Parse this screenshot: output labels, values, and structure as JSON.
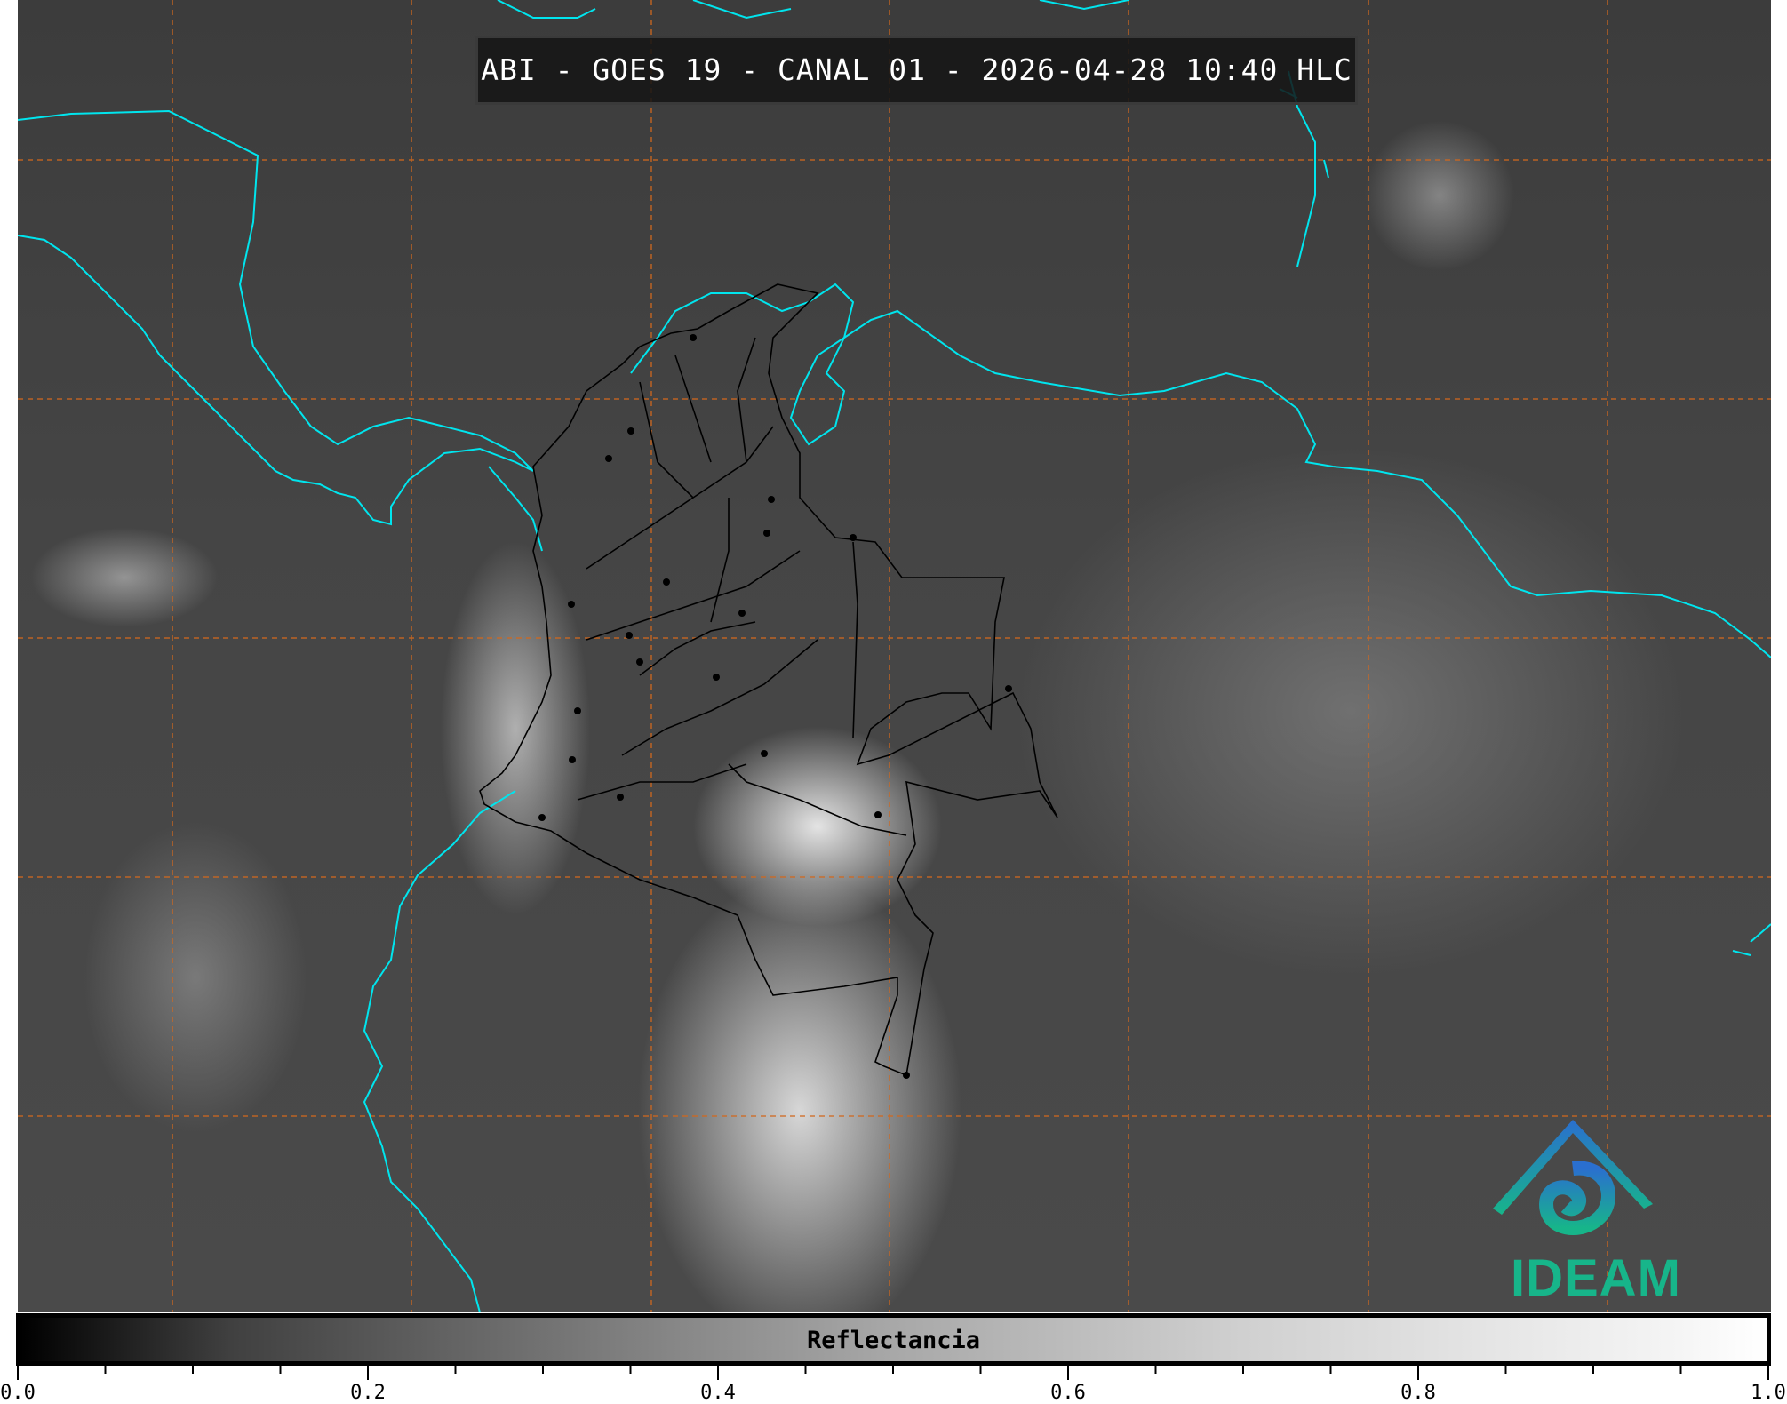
{
  "title": "ABI - GOES 19 - CANAL 01 - 2026-04-28 10:40 HLC",
  "colorbar": {
    "label": "Reflectancia",
    "range": [
      0.0,
      1.0
    ],
    "tick_labels": [
      "0.0",
      "0.2",
      "0.4",
      "0.6",
      "0.8",
      "1.0"
    ],
    "colormap": "grayscale"
  },
  "logo": {
    "text": "IDEAM",
    "colors": [
      "#2a6fcf",
      "#17b58a"
    ]
  },
  "colors": {
    "coastline": "#00e5ee",
    "gridlines": "#d2691e",
    "borders": "#000000"
  }
}
